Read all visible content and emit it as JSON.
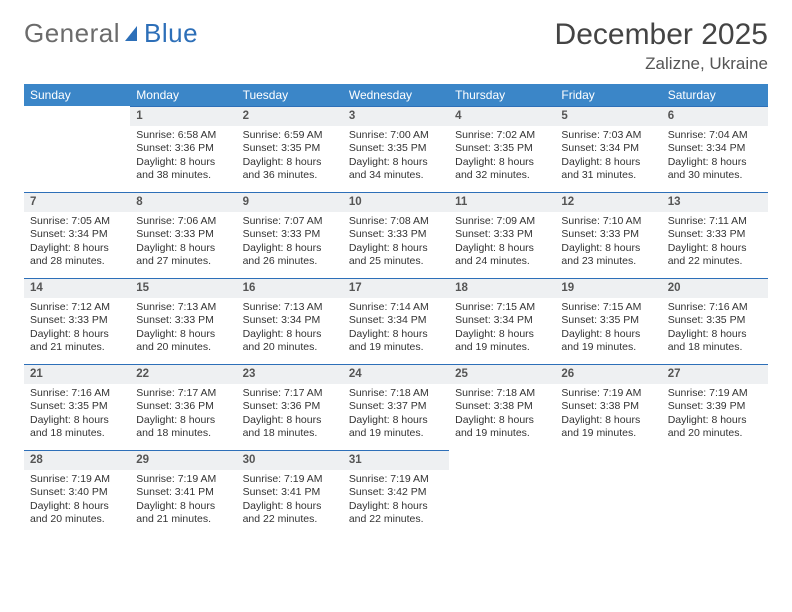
{
  "logo": {
    "text1": "General",
    "text2": "Blue"
  },
  "title": "December 2025",
  "location": "Zalizne, Ukraine",
  "colors": {
    "header_bg": "#3b86c8",
    "header_text": "#ffffff",
    "daynum_bg": "#eef0f2",
    "daynum_border": "#2d6fb8",
    "body_bg": "#ffffff",
    "text": "#333333",
    "logo_gray": "#6b6b6b",
    "logo_blue": "#2d6fb8"
  },
  "typography": {
    "title_size": 30,
    "location_size": 17,
    "header_size": 12,
    "cell_size": 10.5,
    "daynum_size": 11.5,
    "font_family": "Arial"
  },
  "daynames": [
    "Sunday",
    "Monday",
    "Tuesday",
    "Wednesday",
    "Thursday",
    "Friday",
    "Saturday"
  ],
  "weeks": [
    [
      null,
      {
        "n": "1",
        "sr": "6:58 AM",
        "ss": "3:36 PM",
        "dl": "8 hours and 38 minutes."
      },
      {
        "n": "2",
        "sr": "6:59 AM",
        "ss": "3:35 PM",
        "dl": "8 hours and 36 minutes."
      },
      {
        "n": "3",
        "sr": "7:00 AM",
        "ss": "3:35 PM",
        "dl": "8 hours and 34 minutes."
      },
      {
        "n": "4",
        "sr": "7:02 AM",
        "ss": "3:35 PM",
        "dl": "8 hours and 32 minutes."
      },
      {
        "n": "5",
        "sr": "7:03 AM",
        "ss": "3:34 PM",
        "dl": "8 hours and 31 minutes."
      },
      {
        "n": "6",
        "sr": "7:04 AM",
        "ss": "3:34 PM",
        "dl": "8 hours and 30 minutes."
      }
    ],
    [
      {
        "n": "7",
        "sr": "7:05 AM",
        "ss": "3:34 PM",
        "dl": "8 hours and 28 minutes."
      },
      {
        "n": "8",
        "sr": "7:06 AM",
        "ss": "3:33 PM",
        "dl": "8 hours and 27 minutes."
      },
      {
        "n": "9",
        "sr": "7:07 AM",
        "ss": "3:33 PM",
        "dl": "8 hours and 26 minutes."
      },
      {
        "n": "10",
        "sr": "7:08 AM",
        "ss": "3:33 PM",
        "dl": "8 hours and 25 minutes."
      },
      {
        "n": "11",
        "sr": "7:09 AM",
        "ss": "3:33 PM",
        "dl": "8 hours and 24 minutes."
      },
      {
        "n": "12",
        "sr": "7:10 AM",
        "ss": "3:33 PM",
        "dl": "8 hours and 23 minutes."
      },
      {
        "n": "13",
        "sr": "7:11 AM",
        "ss": "3:33 PM",
        "dl": "8 hours and 22 minutes."
      }
    ],
    [
      {
        "n": "14",
        "sr": "7:12 AM",
        "ss": "3:33 PM",
        "dl": "8 hours and 21 minutes."
      },
      {
        "n": "15",
        "sr": "7:13 AM",
        "ss": "3:33 PM",
        "dl": "8 hours and 20 minutes."
      },
      {
        "n": "16",
        "sr": "7:13 AM",
        "ss": "3:34 PM",
        "dl": "8 hours and 20 minutes."
      },
      {
        "n": "17",
        "sr": "7:14 AM",
        "ss": "3:34 PM",
        "dl": "8 hours and 19 minutes."
      },
      {
        "n": "18",
        "sr": "7:15 AM",
        "ss": "3:34 PM",
        "dl": "8 hours and 19 minutes."
      },
      {
        "n": "19",
        "sr": "7:15 AM",
        "ss": "3:35 PM",
        "dl": "8 hours and 19 minutes."
      },
      {
        "n": "20",
        "sr": "7:16 AM",
        "ss": "3:35 PM",
        "dl": "8 hours and 18 minutes."
      }
    ],
    [
      {
        "n": "21",
        "sr": "7:16 AM",
        "ss": "3:35 PM",
        "dl": "8 hours and 18 minutes."
      },
      {
        "n": "22",
        "sr": "7:17 AM",
        "ss": "3:36 PM",
        "dl": "8 hours and 18 minutes."
      },
      {
        "n": "23",
        "sr": "7:17 AM",
        "ss": "3:36 PM",
        "dl": "8 hours and 18 minutes."
      },
      {
        "n": "24",
        "sr": "7:18 AM",
        "ss": "3:37 PM",
        "dl": "8 hours and 19 minutes."
      },
      {
        "n": "25",
        "sr": "7:18 AM",
        "ss": "3:38 PM",
        "dl": "8 hours and 19 minutes."
      },
      {
        "n": "26",
        "sr": "7:19 AM",
        "ss": "3:38 PM",
        "dl": "8 hours and 19 minutes."
      },
      {
        "n": "27",
        "sr": "7:19 AM",
        "ss": "3:39 PM",
        "dl": "8 hours and 20 minutes."
      }
    ],
    [
      {
        "n": "28",
        "sr": "7:19 AM",
        "ss": "3:40 PM",
        "dl": "8 hours and 20 minutes."
      },
      {
        "n": "29",
        "sr": "7:19 AM",
        "ss": "3:41 PM",
        "dl": "8 hours and 21 minutes."
      },
      {
        "n": "30",
        "sr": "7:19 AM",
        "ss": "3:41 PM",
        "dl": "8 hours and 22 minutes."
      },
      {
        "n": "31",
        "sr": "7:19 AM",
        "ss": "3:42 PM",
        "dl": "8 hours and 22 minutes."
      },
      null,
      null,
      null
    ]
  ],
  "labels": {
    "sunrise": "Sunrise: ",
    "sunset": "Sunset: ",
    "daylight": "Daylight: "
  }
}
